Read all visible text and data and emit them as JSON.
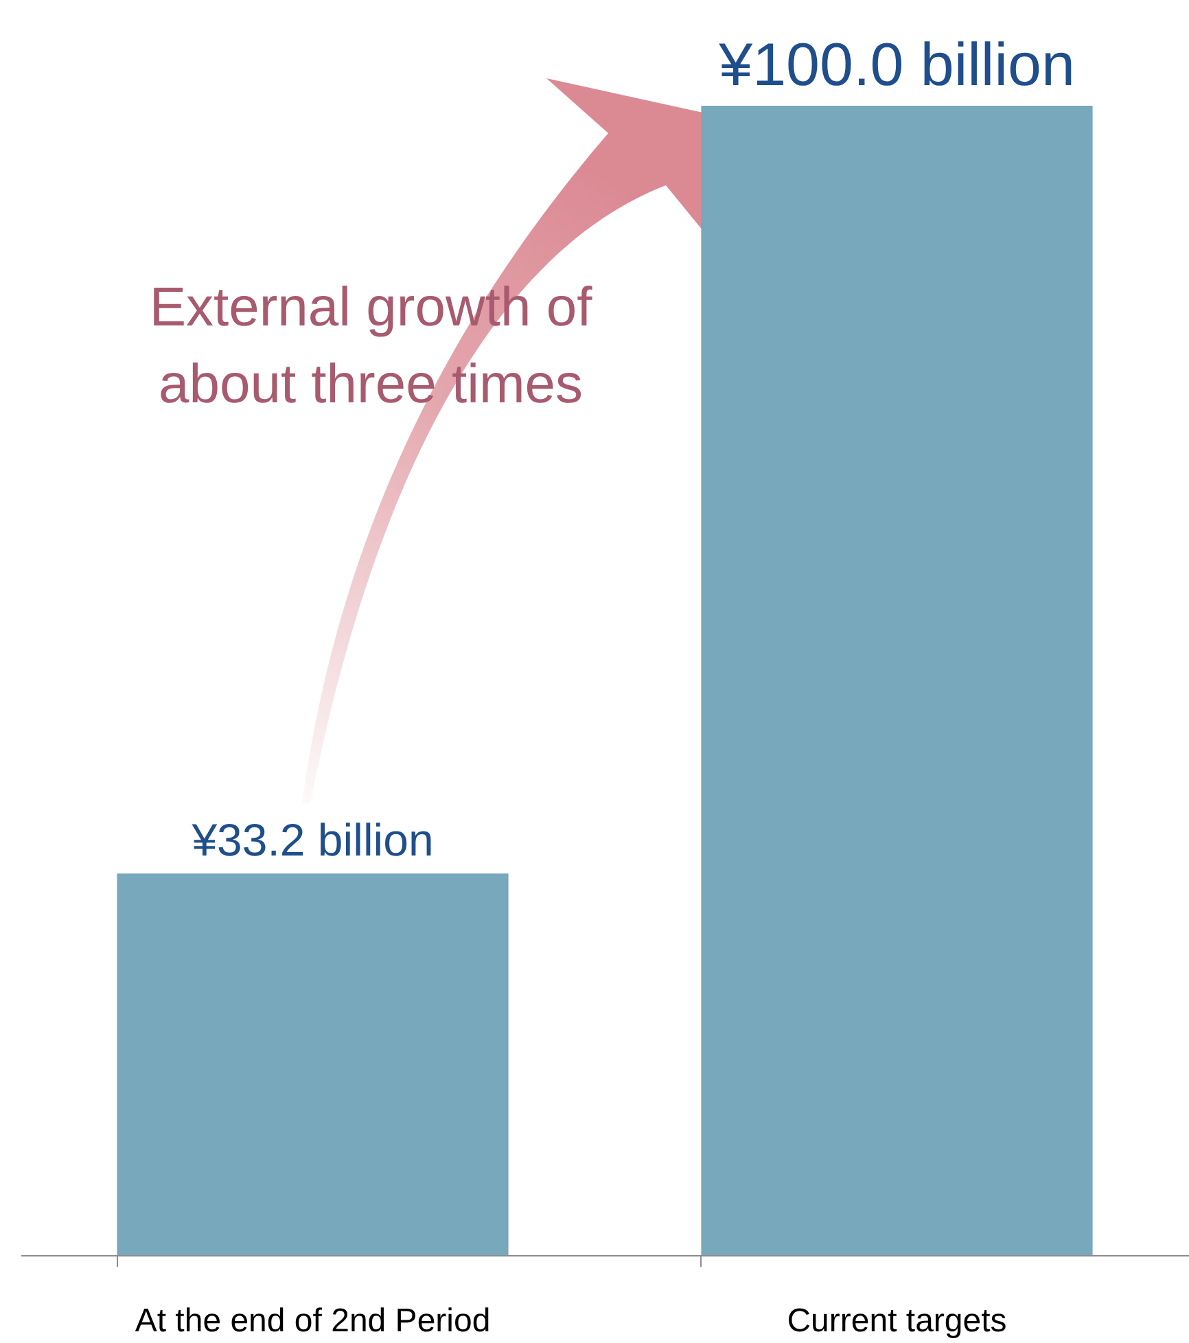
{
  "chart_data": {
    "type": "bar",
    "categories": [
      "At the end of 2nd Period",
      "Current targets"
    ],
    "values": [
      33.2,
      100.0
    ],
    "color": "#77a8bc",
    "value_labels": [
      "¥33.2 billion",
      "¥100.0 billion"
    ],
    "annotations": [
      "External growth of\nabout three times"
    ]
  }
}
